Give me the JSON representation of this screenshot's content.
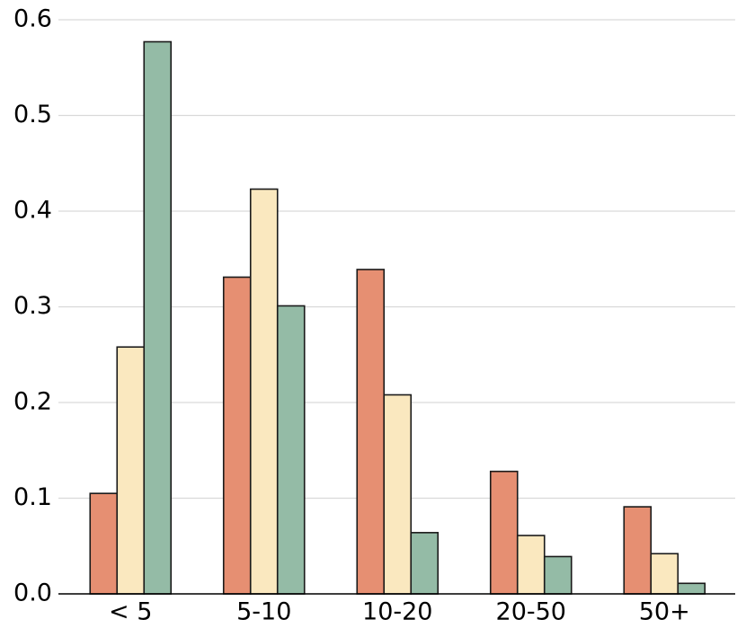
{
  "chart_data": {
    "type": "bar",
    "categories": [
      "< 5",
      "5-10",
      "10-20",
      "20-50",
      "50+"
    ],
    "series": [
      {
        "color": "#e68f72",
        "values": [
          0.105,
          0.331,
          0.339,
          0.128,
          0.091
        ]
      },
      {
        "color": "#fae8bf",
        "values": [
          0.258,
          0.423,
          0.208,
          0.061,
          0.042
        ]
      },
      {
        "color": "#94bba6",
        "values": [
          0.577,
          0.301,
          0.064,
          0.039,
          0.011
        ]
      }
    ],
    "ylim": [
      0,
      0.6
    ],
    "yticks": [
      {
        "value": 0,
        "label": "0.0"
      },
      0.1,
      0.2,
      0.3,
      0.4,
      0.5,
      0.6
    ],
    "grid": true
  }
}
